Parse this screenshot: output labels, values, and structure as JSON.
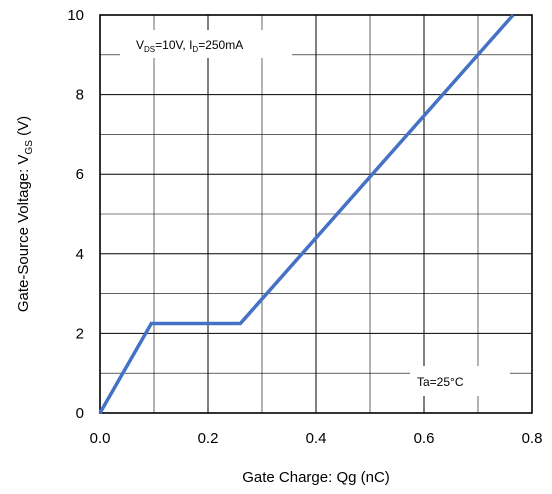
{
  "chart_data": {
    "type": "line",
    "xlabel": "Gate Charge: Qg (nC)",
    "ylabel_main": "Gate-Source Voltage: V",
    "ylabel_sub": "GS",
    "ylabel_unit": " (V)",
    "xlim": [
      0.0,
      0.8
    ],
    "ylim": [
      0,
      10
    ],
    "x_ticks": [
      "0.0",
      "0.2",
      "0.4",
      "0.6",
      "0.8"
    ],
    "y_ticks": [
      "0",
      "2",
      "4",
      "6",
      "8",
      "10"
    ],
    "grid": true,
    "line_color": "#4472C4",
    "series": [
      {
        "x": [
          0.0,
          0.095,
          0.26,
          0.765
        ],
        "y": [
          0.0,
          2.25,
          2.25,
          10.0
        ]
      }
    ],
    "annotations": {
      "conditions": {
        "v_prefix": "V",
        "v_sub": "DS",
        "v_value": "=10V, I",
        "i_sub": "D",
        "i_value": "=250mA"
      },
      "temperature": "Ta=25°C"
    }
  }
}
